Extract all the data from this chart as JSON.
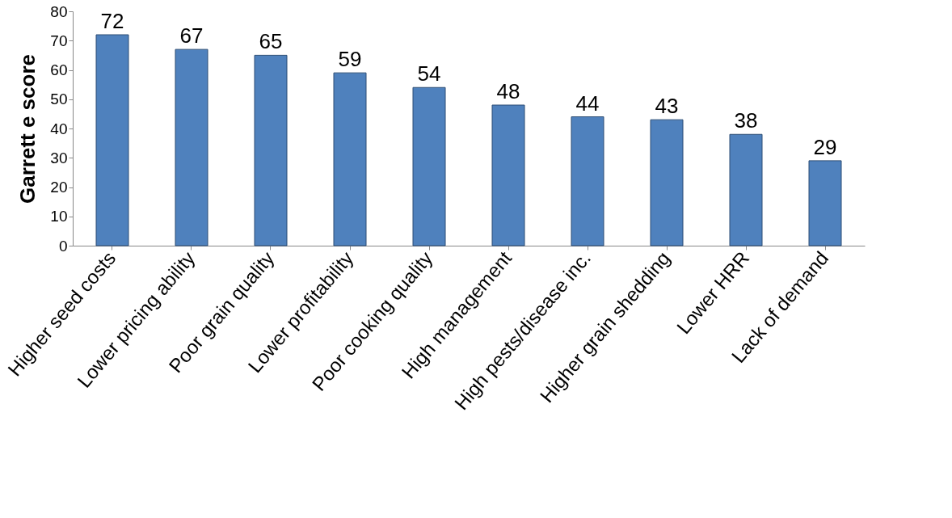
{
  "chart_data": {
    "type": "bar",
    "ylabel": "Garrett e  score",
    "categories": [
      "Higher seed costs",
      "Lower pricing ability",
      "Poor grain quality",
      "Lower profitability",
      "Poor cooking quality",
      "High management",
      "High pests/disease inc.",
      "Higher grain shedding",
      "Lower HRR",
      "Lack of demand"
    ],
    "values": [
      72,
      67,
      65,
      59,
      54,
      48,
      44,
      43,
      38,
      29
    ],
    "color": "#4f81bd",
    "ylim": [
      0,
      80
    ],
    "yticks": [
      0,
      10,
      20,
      30,
      40,
      50,
      60,
      70,
      80
    ],
    "grid": false,
    "data_labels": true
  }
}
